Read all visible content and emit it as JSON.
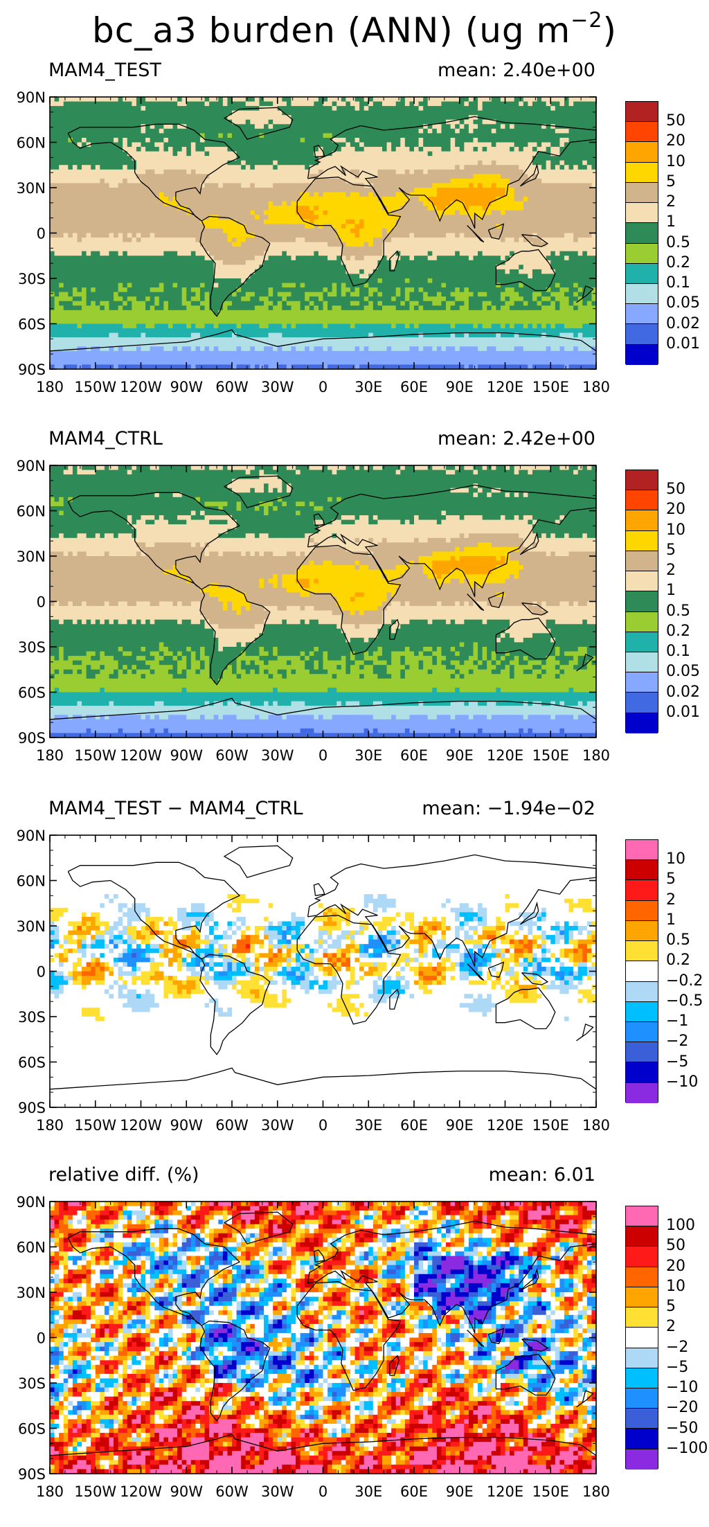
{
  "title_main": "bc_a3 burden (ANN) (ug m",
  "title_exp": "−2",
  "title_close": ")",
  "lat_ticks": [
    "90N",
    "60N",
    "30N",
    "0",
    "30S",
    "60S",
    "90S"
  ],
  "lon_ticks": [
    "180",
    "150W",
    "120W",
    "90W",
    "60W",
    "30W",
    "0",
    "30E",
    "60E",
    "90E",
    "120E",
    "150E",
    "180"
  ],
  "panels": [
    {
      "label": "MAM4_TEST",
      "mean": "mean: 2.40e+00",
      "colorbar": {
        "colors": [
          "#b22222",
          "#ff4500",
          "#ffa500",
          "#ffd700",
          "#d2b48c",
          "#f5deb3",
          "#2e8b57",
          "#9acd32",
          "#20b2aa",
          "#b0e0e6",
          "#87a8ff",
          "#4169e1",
          "#0000cd"
        ],
        "labels": [
          "50",
          "20",
          "10",
          "5",
          "2",
          "1",
          "0.5",
          "0.2",
          "0.1",
          "0.05",
          "0.02",
          "0.01"
        ]
      }
    },
    {
      "label": "MAM4_CTRL",
      "mean": "mean: 2.42e+00",
      "colorbar": {
        "colors": [
          "#b22222",
          "#ff4500",
          "#ffa500",
          "#ffd700",
          "#d2b48c",
          "#f5deb3",
          "#2e8b57",
          "#9acd32",
          "#20b2aa",
          "#b0e0e6",
          "#87a8ff",
          "#4169e1",
          "#0000cd"
        ],
        "labels": [
          "50",
          "20",
          "10",
          "5",
          "2",
          "1",
          "0.5",
          "0.2",
          "0.1",
          "0.05",
          "0.02",
          "0.01"
        ]
      }
    },
    {
      "label": "MAM4_TEST − MAM4_CTRL",
      "mean": "mean: −1.94e−02",
      "colorbar": {
        "colors": [
          "#ff69b4",
          "#cc0000",
          "#ff1a1a",
          "#ff6600",
          "#ffa500",
          "#ffe033",
          "#ffffff",
          "#add8f6",
          "#00bfff",
          "#1e90ff",
          "#3a5fd9",
          "#0000cd",
          "#8a2be2"
        ],
        "labels": [
          "10",
          "5",
          "2",
          "1",
          "0.5",
          "0.2",
          "−0.2",
          "−0.5",
          "−1",
          "−2",
          "−5",
          "−10"
        ]
      }
    },
    {
      "label": "relative diff. (%)",
      "mean": "mean:   6.01",
      "colorbar": {
        "colors": [
          "#ff69b4",
          "#cc0000",
          "#ff1a1a",
          "#ff6600",
          "#ffa500",
          "#ffe033",
          "#ffffff",
          "#add8f6",
          "#00bfff",
          "#1e90ff",
          "#3a5fd9",
          "#0000cd",
          "#8a2be2"
        ],
        "labels": [
          "100",
          "50",
          "20",
          "10",
          "5",
          "2",
          "−2",
          "−5",
          "−10",
          "−20",
          "−50",
          "−100"
        ]
      }
    }
  ]
}
